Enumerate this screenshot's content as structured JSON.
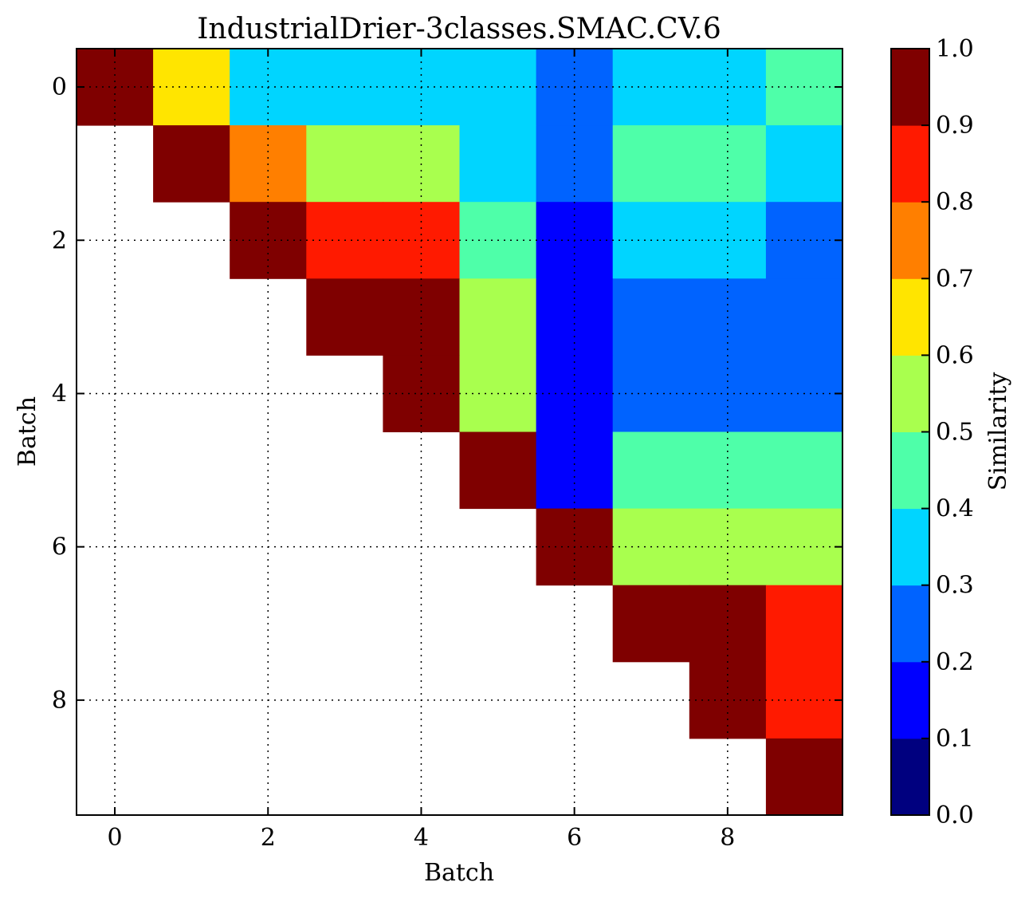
{
  "chart_data": {
    "type": "heatmap",
    "title": "IndustrialDrier-3classes.SMAC.CV.6",
    "xlabel": "Batch",
    "ylabel": "Batch",
    "colorbar_label": "Similarity",
    "x_ticks": [
      "0",
      "2",
      "4",
      "6",
      "8"
    ],
    "y_ticks": [
      "0",
      "2",
      "4",
      "6",
      "8"
    ],
    "colorbar_ticks": [
      "0.0",
      "0.1",
      "0.2",
      "0.3",
      "0.4",
      "0.5",
      "0.6",
      "0.7",
      "0.8",
      "0.9",
      "1.0"
    ],
    "xlim": [
      -0.5,
      9.5
    ],
    "ylim": [
      9.5,
      -0.5
    ],
    "clim": [
      0.0,
      1.0
    ],
    "grid": true,
    "colormap": "jet (10 discrete levels)",
    "colorbar_colors": [
      "#00007f",
      "#0000ff",
      "#0063ff",
      "#00d5ff",
      "#4effa9",
      "#a9ff4e",
      "#ffe500",
      "#ff7f00",
      "#ff1a00",
      "#7f0000"
    ],
    "values": [
      [
        0.95,
        0.65,
        0.35,
        0.35,
        0.35,
        0.35,
        0.25,
        0.35,
        0.35,
        0.45
      ],
      [
        null,
        0.95,
        0.75,
        0.55,
        0.55,
        0.35,
        0.25,
        0.45,
        0.45,
        0.35
      ],
      [
        null,
        null,
        0.95,
        0.85,
        0.85,
        0.45,
        0.15,
        0.35,
        0.35,
        0.25
      ],
      [
        null,
        null,
        null,
        0.95,
        0.95,
        0.55,
        0.15,
        0.25,
        0.25,
        0.25
      ],
      [
        null,
        null,
        null,
        null,
        0.95,
        0.55,
        0.15,
        0.25,
        0.25,
        0.25
      ],
      [
        null,
        null,
        null,
        null,
        null,
        0.95,
        0.15,
        0.45,
        0.45,
        0.45
      ],
      [
        null,
        null,
        null,
        null,
        null,
        null,
        0.95,
        0.55,
        0.55,
        0.55
      ],
      [
        null,
        null,
        null,
        null,
        null,
        null,
        null,
        0.95,
        0.95,
        0.85
      ],
      [
        null,
        null,
        null,
        null,
        null,
        null,
        null,
        null,
        0.95,
        0.85
      ],
      [
        null,
        null,
        null,
        null,
        null,
        null,
        null,
        null,
        null,
        0.95
      ]
    ]
  }
}
